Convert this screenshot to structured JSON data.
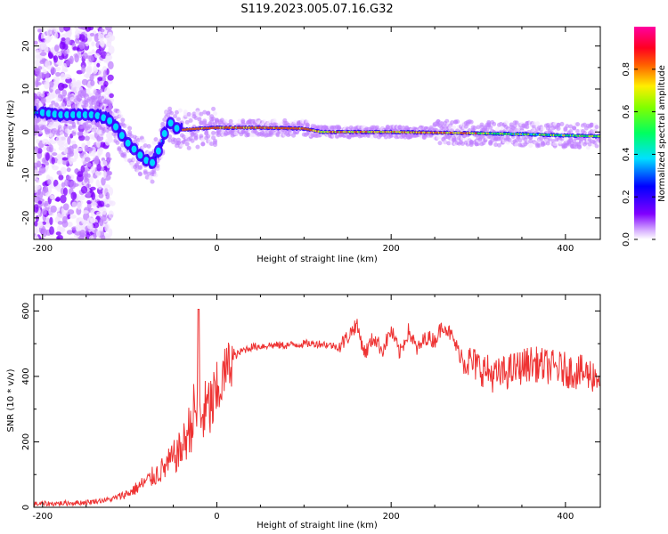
{
  "title": "S119.2023.005.07.16.G32",
  "chart_data": [
    {
      "type": "heatmap",
      "title": "",
      "xlabel": "Height of straight line (km)",
      "ylabel": "Frequency (Hz)",
      "xlim": [
        -210,
        440
      ],
      "ylim": [
        -25,
        24.5
      ],
      "xticks": [
        -200,
        0,
        200,
        400
      ],
      "yticks": [
        -20,
        -10,
        0,
        10,
        20
      ],
      "colorbar": {
        "label": "Normalized spectral amplitude",
        "range": [
          0,
          1
        ],
        "ticks": [
          "0.0",
          "0.2",
          "0.4",
          "0.6",
          "0.8"
        ],
        "colormap": "gist_rainbow (white-violet-blue-cyan-green-yellow-red-magenta)"
      },
      "trace": [
        {
          "x": -200,
          "y": 4.5
        },
        {
          "x": -180,
          "y": 4.0
        },
        {
          "x": -160,
          "y": 4.0
        },
        {
          "x": -140,
          "y": 4.0
        },
        {
          "x": -125,
          "y": 3.0
        },
        {
          "x": -115,
          "y": 1.0
        },
        {
          "x": -105,
          "y": -2.0
        },
        {
          "x": -95,
          "y": -4.0
        },
        {
          "x": -85,
          "y": -6.0
        },
        {
          "x": -75,
          "y": -7.5
        },
        {
          "x": -68,
          "y": -5.0
        },
        {
          "x": -62,
          "y": -1.5
        },
        {
          "x": -55,
          "y": 2.5
        },
        {
          "x": -48,
          "y": 1.0
        },
        {
          "x": -40,
          "y": 0.5
        },
        {
          "x": -20,
          "y": 0.8
        },
        {
          "x": 0,
          "y": 1.0
        },
        {
          "x": 50,
          "y": 1.0
        },
        {
          "x": 100,
          "y": 0.8
        },
        {
          "x": 120,
          "y": 0.0
        },
        {
          "x": 200,
          "y": 0.0
        },
        {
          "x": 300,
          "y": -0.3
        },
        {
          "x": 350,
          "y": -0.5
        },
        {
          "x": 400,
          "y": -0.8
        },
        {
          "x": 440,
          "y": -1.0
        }
      ],
      "grid": false
    },
    {
      "type": "line",
      "title": "",
      "xlabel": "Height of straight line (km)",
      "ylabel": "SNR (10 * v/v)",
      "xlim": [
        -210,
        440
      ],
      "ylim": [
        0,
        650
      ],
      "xticks": [
        -200,
        0,
        200,
        400
      ],
      "yticks": [
        0,
        200,
        400,
        600
      ],
      "color": "#ee3333",
      "series": [
        {
          "x": [
            -210,
            -180,
            -150,
            -120,
            -100,
            -80,
            -60,
            -50,
            -40,
            -30,
            -25,
            -20,
            -10,
            0,
            10,
            20,
            30,
            40,
            60,
            80,
            100,
            120,
            140,
            150,
            160,
            170,
            180,
            190,
            200,
            210,
            220,
            230,
            240,
            250,
            260,
            270,
            280,
            300,
            320,
            340,
            360,
            380,
            400,
            420,
            440
          ],
          "values": [
            10,
            12,
            15,
            25,
            45,
            80,
            120,
            150,
            180,
            250,
            300,
            270,
            300,
            330,
            420,
            460,
            480,
            490,
            495,
            495,
            500,
            500,
            490,
            520,
            560,
            470,
            520,
            480,
            540,
            470,
            540,
            480,
            520,
            510,
            560,
            520,
            460,
            430,
            400,
            420,
            440,
            430,
            420,
            410,
            400
          ]
        }
      ],
      "grid": false
    }
  ]
}
